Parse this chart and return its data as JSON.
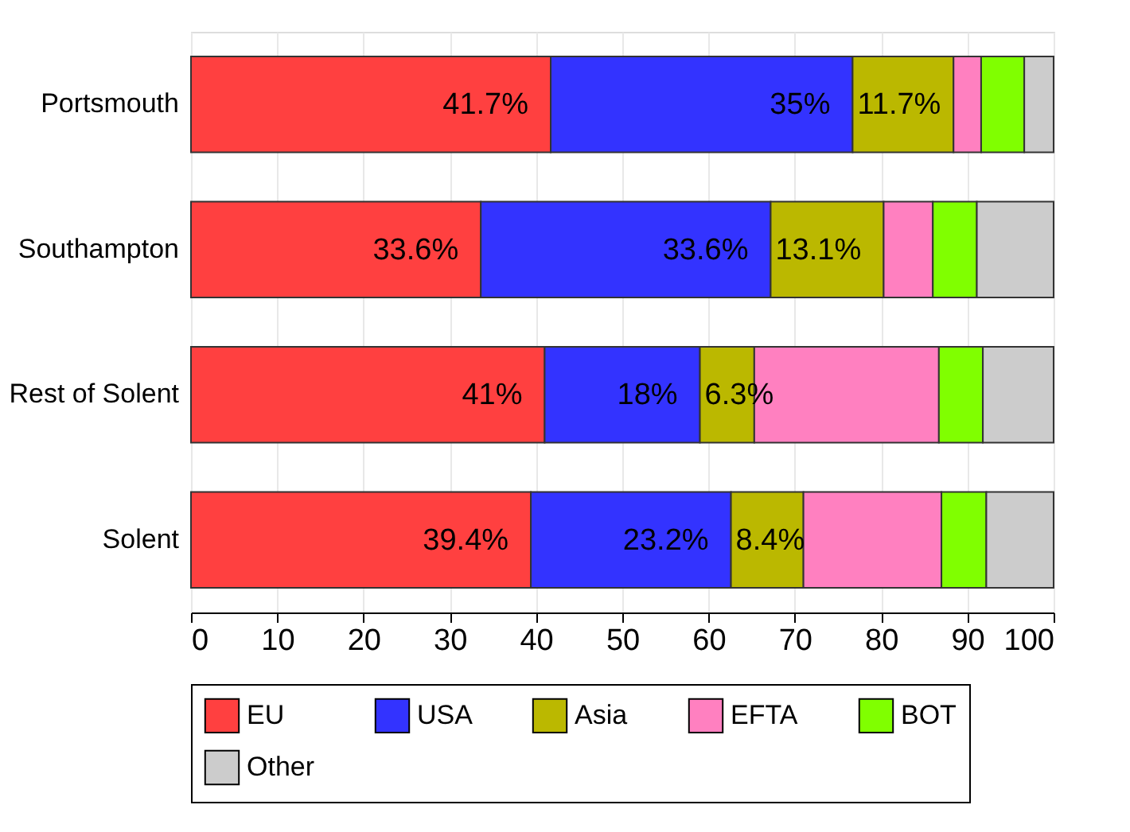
{
  "chart_data": {
    "type": "bar",
    "orientation": "horizontal",
    "stacked": true,
    "categories": [
      "Portsmouth",
      "Southampton",
      "Rest of Solent",
      "Solent"
    ],
    "series": [
      {
        "name": "EU",
        "color": "#ff4040",
        "values": [
          41.7,
          33.6,
          41,
          39.4
        ],
        "value_labels": [
          "41.7%",
          "33.6%",
          "41%",
          "39.4%"
        ]
      },
      {
        "name": "USA",
        "color": "#3333ff",
        "values": [
          35,
          33.6,
          18,
          23.2
        ],
        "value_labels": [
          "35%",
          "33.6%",
          "18%",
          "23.2%"
        ]
      },
      {
        "name": "Asia",
        "color": "#bbb800",
        "values": [
          11.7,
          13.1,
          6.3,
          8.4
        ],
        "value_labels": [
          "11.7%",
          "13.1%",
          "6.3%",
          "8.4%"
        ]
      },
      {
        "name": "EFTA",
        "color": "#ff80c0",
        "values": [
          3.2,
          5.7,
          21.4,
          16.0
        ]
      },
      {
        "name": "BOT",
        "color": "#80ff00",
        "values": [
          5.0,
          5.1,
          5.1,
          5.2
        ]
      },
      {
        "name": "Other",
        "color": "#cccccc",
        "values": [
          3.4,
          8.9,
          8.2,
          7.8
        ]
      }
    ],
    "xlim": [
      0,
      100
    ],
    "xticks": [
      0,
      10,
      20,
      30,
      40,
      50,
      60,
      70,
      80,
      90,
      100
    ],
    "grid": "x",
    "legend": "bottom"
  }
}
